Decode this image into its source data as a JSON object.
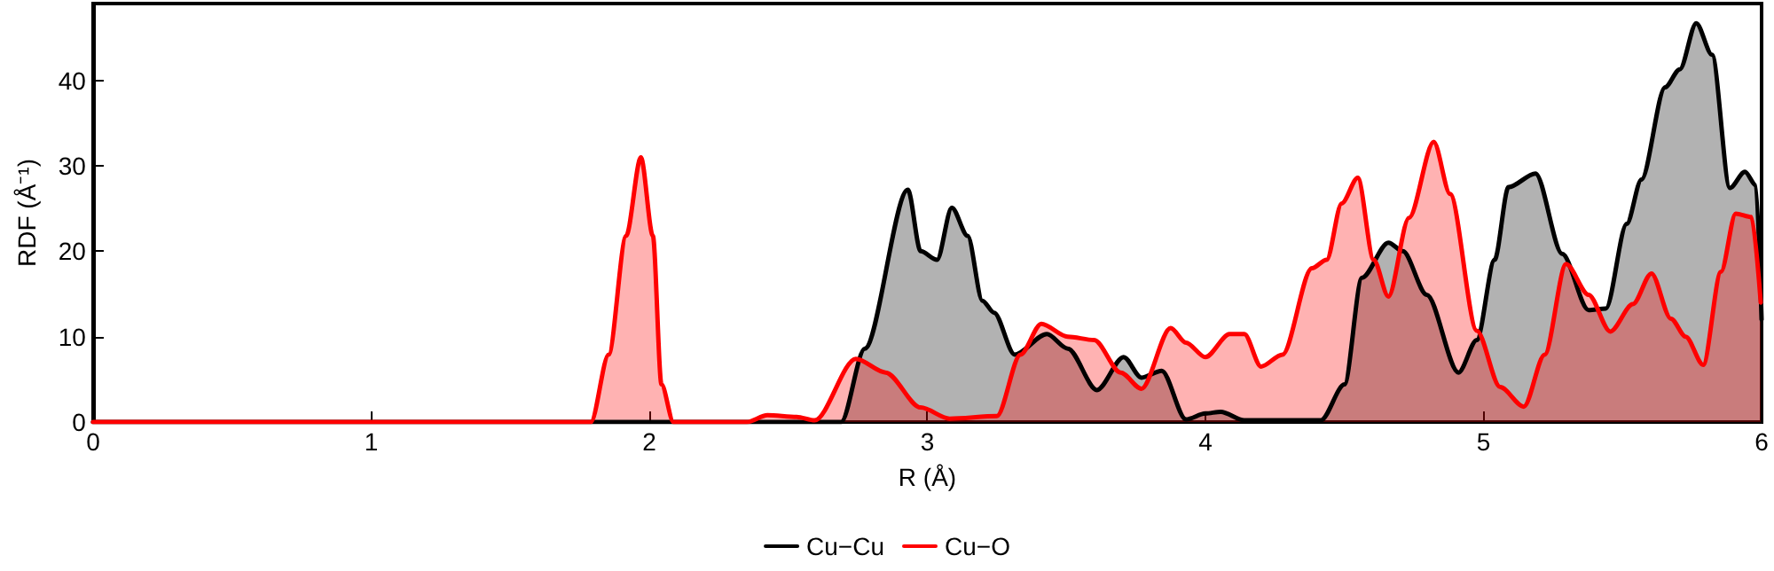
{
  "chart_data": {
    "type": "area",
    "xlabel": "R (Å)",
    "ylabel": "RDF (Å⁻¹)",
    "xlim": [
      0,
      6
    ],
    "xticks": [
      0,
      1,
      2,
      3,
      4,
      5,
      6
    ],
    "ylim": [
      0,
      49
    ],
    "yticks": [
      0,
      10,
      20,
      30,
      40
    ],
    "grid": false,
    "legend": "bottom",
    "marker": "none",
    "line_style": "solid",
    "series": [
      {
        "name": "Cu−Cu",
        "color": "#000000",
        "x": [
          0,
          2.69,
          2.775,
          2.93,
          2.976,
          3.035,
          3.088,
          3.145,
          3.198,
          3.24,
          3.314,
          3.43,
          3.505,
          3.61,
          3.706,
          3.77,
          3.843,
          3.93,
          4.0,
          4.055,
          4.14,
          4.415,
          4.5,
          4.563,
          4.658,
          4.71,
          4.796,
          4.91,
          4.976,
          5.04,
          5.09,
          5.187,
          5.283,
          5.378,
          5.44,
          5.515,
          5.568,
          5.653,
          5.706,
          5.765,
          5.822,
          5.886,
          5.94,
          5.98,
          6.0
        ],
        "values": [
          0,
          0,
          8.6,
          27.2,
          20,
          19,
          25.1,
          21.8,
          14.2,
          12.8,
          7.9,
          10.3,
          8.6,
          3.75,
          7.6,
          5.2,
          6,
          0.3,
          1,
          1.2,
          0.2,
          0.2,
          4.4,
          16.9,
          21,
          20,
          14.9,
          5.8,
          9.6,
          19,
          27.5,
          29.1,
          19.7,
          13.1,
          13.3,
          23.2,
          28.4,
          39.2,
          41.3,
          46.7,
          43,
          27.4,
          29.3,
          27.7,
          12
        ]
      },
      {
        "name": "Cu−O",
        "color": "#ff0000",
        "x": [
          0,
          1.79,
          1.854,
          1.917,
          1.97,
          2.013,
          2.044,
          2.087,
          2.35,
          2.425,
          2.53,
          2.595,
          2.743,
          2.85,
          2.976,
          3.08,
          3.25,
          3.335,
          3.41,
          3.505,
          3.6,
          3.695,
          3.77,
          3.875,
          3.93,
          4.0,
          4.087,
          4.14,
          4.2,
          4.277,
          4.383,
          4.436,
          4.49,
          4.548,
          4.605,
          4.658,
          4.732,
          4.821,
          4.88,
          4.976,
          5.06,
          5.145,
          5.22,
          5.297,
          5.378,
          5.456,
          5.537,
          5.604,
          5.674,
          5.727,
          5.79,
          5.854,
          5.907,
          5.964,
          5.997
        ],
        "values": [
          0,
          0,
          7.9,
          21.8,
          31,
          21.8,
          4.4,
          0,
          0,
          0.8,
          0.6,
          0.2,
          7.4,
          5.8,
          1.7,
          0.4,
          0.7,
          7.9,
          11.5,
          10,
          9.6,
          5.8,
          3.9,
          11,
          9.3,
          7.6,
          10.3,
          10.3,
          6.5,
          7.9,
          18,
          19,
          25.6,
          28.6,
          19,
          14.7,
          23.9,
          32.8,
          26.7,
          10.7,
          4.1,
          1.8,
          7.9,
          18.5,
          14.9,
          10.6,
          13.8,
          17.4,
          12.1,
          10,
          6.7,
          17.6,
          24.4,
          24,
          14
        ]
      }
    ]
  }
}
